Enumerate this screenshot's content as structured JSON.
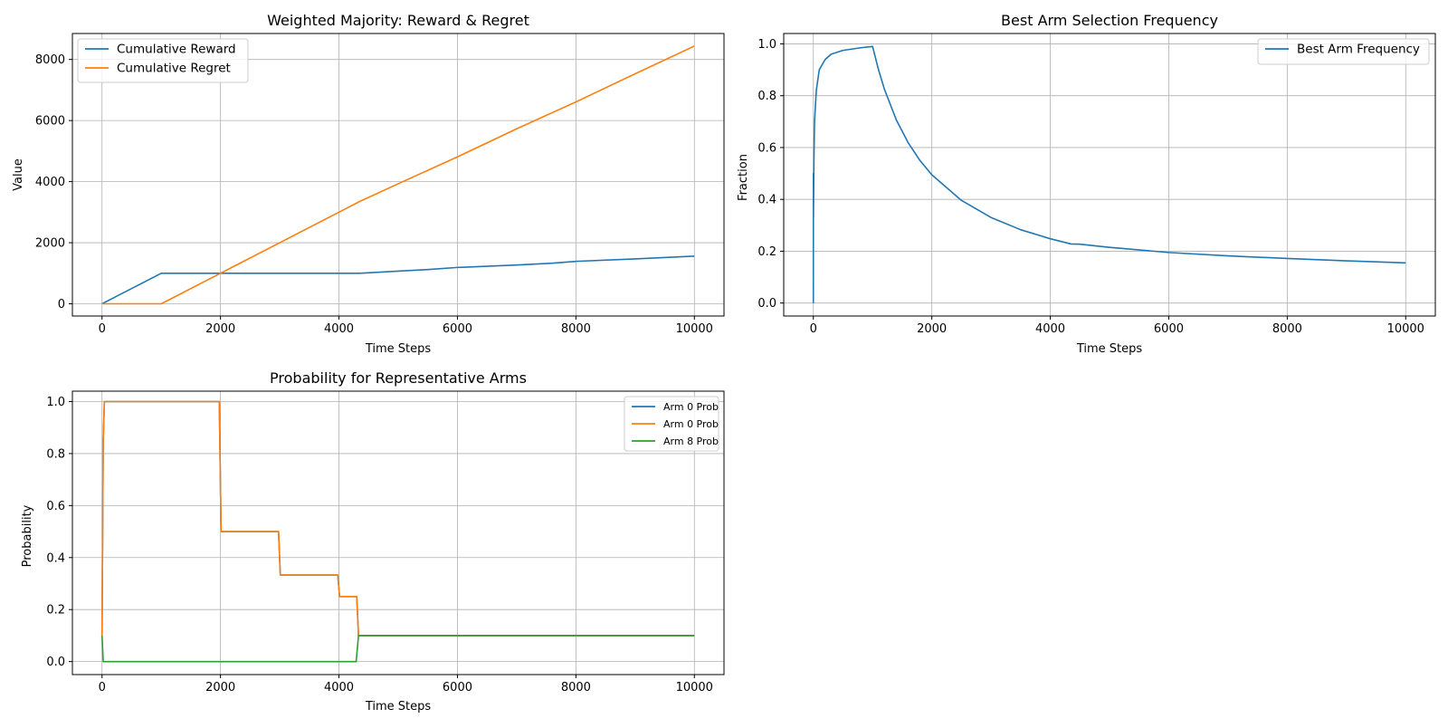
{
  "chart_data": [
    {
      "id": "reward-regret",
      "type": "line",
      "title": "Weighted Majority: Reward & Regret",
      "xlabel": "Time Steps",
      "ylabel": "Value",
      "xlim": [
        -500,
        10500
      ],
      "ylim": [
        -400,
        8850
      ],
      "xticks": [
        0,
        2000,
        4000,
        6000,
        8000,
        10000
      ],
      "yticks": [
        0,
        2000,
        4000,
        6000,
        8000
      ],
      "grid": true,
      "legend_position": "upper-left",
      "series": [
        {
          "name": "Cumulative Reward",
          "color": "#1f77b4",
          "points": [
            [
              0,
              0
            ],
            [
              1000,
              1000
            ],
            [
              2000,
              1000
            ],
            [
              3000,
              1000
            ],
            [
              4000,
              1000
            ],
            [
              4350,
              1000
            ],
            [
              5000,
              1070
            ],
            [
              5500,
              1120
            ],
            [
              6000,
              1190
            ],
            [
              7000,
              1270
            ],
            [
              7600,
              1330
            ],
            [
              8000,
              1390
            ],
            [
              9000,
              1470
            ],
            [
              10000,
              1560
            ]
          ]
        },
        {
          "name": "Cumulative Regret",
          "color": "#ff7f0e",
          "points": [
            [
              0,
              0
            ],
            [
              1000,
              0
            ],
            [
              2000,
              1000
            ],
            [
              3000,
              2000
            ],
            [
              4000,
              3000
            ],
            [
              4350,
              3350
            ],
            [
              5000,
              3930
            ],
            [
              6000,
              4810
            ],
            [
              7000,
              5730
            ],
            [
              8000,
              6610
            ],
            [
              9000,
              7530
            ],
            [
              10000,
              8440
            ]
          ]
        }
      ]
    },
    {
      "id": "best-arm-frequency",
      "type": "line",
      "title": "Best Arm Selection Frequency",
      "xlabel": "Time Steps",
      "ylabel": "Fraction",
      "xlim": [
        -500,
        10500
      ],
      "ylim": [
        -0.05,
        1.04
      ],
      "xticks": [
        0,
        2000,
        4000,
        6000,
        8000,
        10000
      ],
      "yticks": [
        0.0,
        0.2,
        0.4,
        0.6,
        0.8,
        1.0
      ],
      "grid": true,
      "legend_position": "upper-right",
      "series": [
        {
          "name": "Best Arm Frequency",
          "color": "#1f77b4",
          "points": [
            [
              0,
              0.0
            ],
            [
              1,
              0.5
            ],
            [
              2,
              0.33
            ],
            [
              10,
              0.55
            ],
            [
              20,
              0.7
            ],
            [
              50,
              0.82
            ],
            [
              100,
              0.9
            ],
            [
              200,
              0.94
            ],
            [
              300,
              0.96
            ],
            [
              500,
              0.975
            ],
            [
              800,
              0.985
            ],
            [
              1000,
              0.99
            ],
            [
              1100,
              0.9
            ],
            [
              1200,
              0.825
            ],
            [
              1400,
              0.707
            ],
            [
              1600,
              0.619
            ],
            [
              1800,
              0.55
            ],
            [
              2000,
              0.495
            ],
            [
              2500,
              0.396
            ],
            [
              3000,
              0.33
            ],
            [
              3500,
              0.283
            ],
            [
              4000,
              0.248
            ],
            [
              4350,
              0.228
            ],
            [
              4500,
              0.227
            ],
            [
              5000,
              0.215
            ],
            [
              6000,
              0.195
            ],
            [
              7000,
              0.182
            ],
            [
              8000,
              0.172
            ],
            [
              9000,
              0.163
            ],
            [
              10000,
              0.155
            ]
          ]
        }
      ]
    },
    {
      "id": "arm-probabilities",
      "type": "line",
      "title": "Probability for Representative Arms",
      "xlabel": "Time Steps",
      "ylabel": "Probability",
      "xlim": [
        -500,
        10500
      ],
      "ylim": [
        -0.05,
        1.04
      ],
      "xticks": [
        0,
        2000,
        4000,
        6000,
        8000,
        10000
      ],
      "yticks": [
        0.0,
        0.2,
        0.4,
        0.6,
        0.8,
        1.0
      ],
      "grid": true,
      "legend_position": "upper-right",
      "series": [
        {
          "name": "Arm 0 Prob",
          "color": "#1f77b4",
          "points": [
            [
              0,
              0.1
            ],
            [
              20,
              0.85
            ],
            [
              40,
              1.0
            ],
            [
              1980,
              1.0
            ],
            [
              2010,
              0.5
            ],
            [
              2980,
              0.5
            ],
            [
              3010,
              0.333
            ],
            [
              3980,
              0.333
            ],
            [
              4010,
              0.25
            ],
            [
              4300,
              0.25
            ],
            [
              4330,
              0.1
            ],
            [
              10000,
              0.1
            ]
          ]
        },
        {
          "name": "Arm 0 Prob",
          "color": "#ff7f0e",
          "points": [
            [
              0,
              0.1
            ],
            [
              20,
              0.85
            ],
            [
              40,
              1.0
            ],
            [
              1980,
              1.0
            ],
            [
              2010,
              0.5
            ],
            [
              2980,
              0.5
            ],
            [
              3010,
              0.333
            ],
            [
              3980,
              0.333
            ],
            [
              4010,
              0.25
            ],
            [
              4300,
              0.25
            ],
            [
              4330,
              0.1
            ],
            [
              10000,
              0.1
            ]
          ]
        },
        {
          "name": "Arm 8 Prob",
          "color": "#2ca02c",
          "points": [
            [
              0,
              0.1
            ],
            [
              20,
              0.0
            ],
            [
              4290,
              0.0
            ],
            [
              4330,
              0.1
            ],
            [
              10000,
              0.1
            ]
          ]
        }
      ]
    }
  ]
}
